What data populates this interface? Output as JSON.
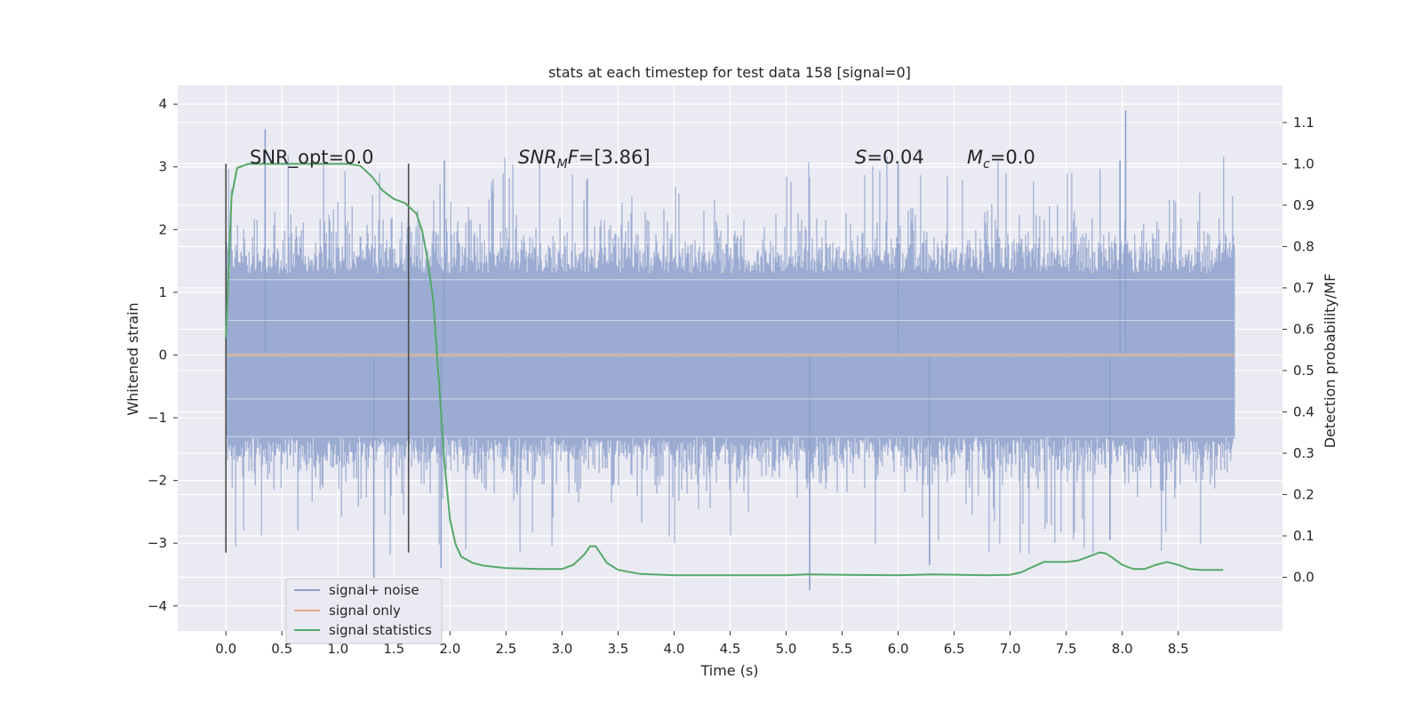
{
  "chart_data": {
    "type": "line",
    "title": "stats at each timestep for test data 158 [signal=0]",
    "xlabel": "Time (s)",
    "ylabel": "Whitened strain",
    "y2label": "Detection probability/MF",
    "xlim": [
      -0.43,
      9.43
    ],
    "ylim": [
      -4.4,
      4.3
    ],
    "y2lim": [
      -0.13,
      1.19
    ],
    "xticks": [
      "0.0",
      "0.5",
      "1.0",
      "1.5",
      "2.0",
      "2.5",
      "3.0",
      "3.5",
      "4.0",
      "4.5",
      "5.0",
      "5.5",
      "6.0",
      "6.5",
      "7.0",
      "7.5",
      "8.0",
      "8.5"
    ],
    "yticks": [
      "4",
      "3",
      "2",
      "1",
      "0",
      "−1",
      "−2",
      "−3",
      "−4"
    ],
    "y2ticks": [
      "1.1",
      "1.0",
      "0.9",
      "0.8",
      "0.7",
      "0.6",
      "0.5",
      "0.4",
      "0.3",
      "0.2",
      "0.1",
      "0.0"
    ],
    "noise_band": {
      "x_range": [
        0.0,
        9.0
      ],
      "typical_amplitude": 1.3,
      "max_peak": 3.9,
      "min_peak": -3.75
    },
    "signal_only": {
      "x": [
        0.0,
        9.0
      ],
      "y": [
        0.0,
        0.0
      ]
    },
    "markers": [
      {
        "x": 0.0,
        "y_range": [
          -3.15,
          3.05
        ]
      },
      {
        "x": 1.63,
        "y_range": [
          -3.15,
          3.05
        ]
      }
    ],
    "series": [
      {
        "name": "signal statistics",
        "axis": "right",
        "x": [
          0.0,
          0.05,
          0.1,
          0.2,
          0.3,
          0.5,
          1.0,
          1.1,
          1.2,
          1.3,
          1.4,
          1.5,
          1.6,
          1.7,
          1.75,
          1.8,
          1.85,
          1.9,
          1.95,
          2.0,
          2.05,
          2.1,
          2.2,
          2.3,
          2.5,
          2.8,
          3.0,
          3.1,
          3.2,
          3.25,
          3.3,
          3.35,
          3.4,
          3.5,
          3.7,
          4.0,
          4.5,
          5.0,
          5.2,
          5.5,
          6.0,
          6.3,
          6.8,
          7.0,
          7.1,
          7.2,
          7.3,
          7.5,
          7.6,
          7.7,
          7.8,
          7.85,
          7.9,
          8.0,
          8.1,
          8.2,
          8.3,
          8.4,
          8.5,
          8.6,
          8.7,
          8.9
        ],
        "y": [
          0.58,
          0.92,
          0.99,
          1.0,
          1.0,
          1.0,
          1.0,
          1.0,
          0.995,
          0.97,
          0.935,
          0.915,
          0.905,
          0.88,
          0.84,
          0.77,
          0.67,
          0.48,
          0.28,
          0.14,
          0.08,
          0.05,
          0.035,
          0.028,
          0.022,
          0.02,
          0.02,
          0.03,
          0.055,
          0.075,
          0.075,
          0.055,
          0.035,
          0.018,
          0.008,
          0.005,
          0.005,
          0.005,
          0.007,
          0.006,
          0.005,
          0.007,
          0.005,
          0.006,
          0.012,
          0.025,
          0.037,
          0.037,
          0.04,
          0.05,
          0.06,
          0.058,
          0.05,
          0.03,
          0.02,
          0.02,
          0.03,
          0.037,
          0.03,
          0.02,
          0.018,
          0.018
        ]
      }
    ],
    "legend": {
      "position": "lower-left",
      "entries": [
        {
          "label": "signal+ noise",
          "color": "#8da0cb"
        },
        {
          "label": "signal only",
          "color": "#e8a88a"
        },
        {
          "label": "signal statistics",
          "color": "#55a868"
        }
      ]
    },
    "annotations": {
      "snr_opt": "SNR_opt=0.0",
      "snr_mf_base": "SNR",
      "snr_mf_sub": "M",
      "snr_mf_var": "F",
      "snr_mf_value": "=[3.86]",
      "s_var": "S",
      "s_value": "=0.04",
      "mc_base": "M",
      "mc_sub": "c",
      "mc_value": "=0.0"
    },
    "colors": {
      "background": "#eaeaf2",
      "grid": "#ffffff",
      "noise": "#8da0cb",
      "signal_only": "#e8a88a",
      "statistics": "#55a868",
      "marker": "#4d4d4d",
      "text": "#262626"
    }
  }
}
